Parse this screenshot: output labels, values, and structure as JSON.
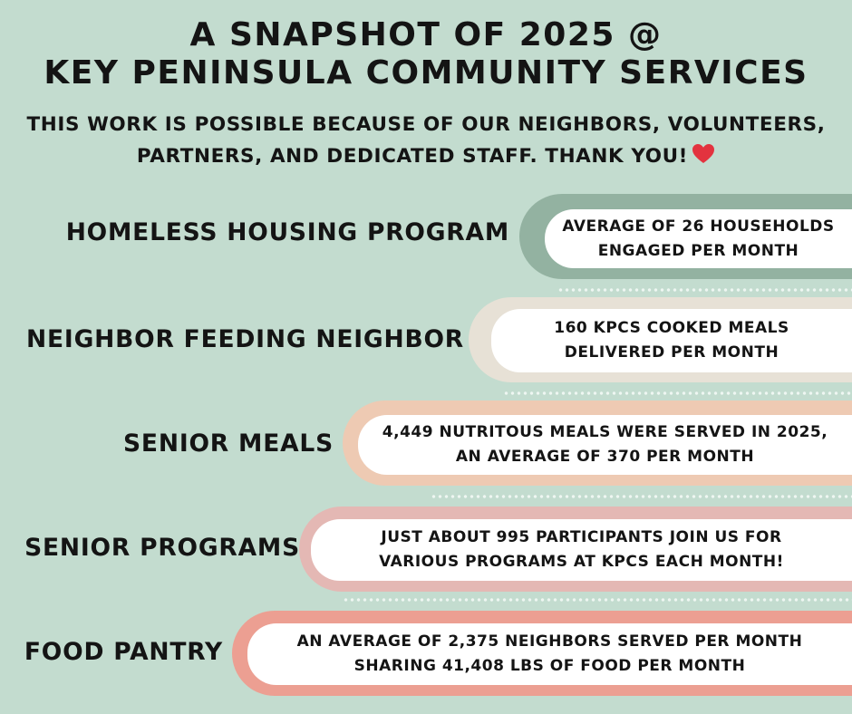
{
  "header": {
    "title_line1": "A SNAPSHOT OF 2025 @",
    "title_line2": "KEY PENINSULA COMMUNITY SERVICES",
    "subtitle_line1": "THIS WORK IS POSSIBLE BECAUSE OF OUR NEIGHBORS, VOLUNTEERS,",
    "subtitle_line2": "PARTNERS, AND DEDICATED STAFF. THANK YOU!",
    "heart_icon": "red-heart-icon",
    "heart_color": "#e3333f"
  },
  "colors": {
    "background": "#c3dccf",
    "dots": "#eef6f1"
  },
  "programs": [
    {
      "name": "HOMELESS HOUSING PROGRAM",
      "stat_line1": "AVERAGE OF 26 HOUSEHOLDS",
      "stat_line2": "ENGAGED PER MONTH",
      "band_color": "#93b2a1"
    },
    {
      "name": "NEIGHBOR FEEDING NEIGHBOR",
      "stat_line1": "160 KPCS COOKED MEALS",
      "stat_line2": "DELIVERED PER MONTH",
      "band_color": "#e7e1d6"
    },
    {
      "name": "SENIOR MEALS",
      "stat_line1": "4,449 NUTRITOUS MEALS WERE SERVED IN 2025,",
      "stat_line2": "AN AVERAGE OF 370 PER MONTH",
      "band_color": "#eecab3"
    },
    {
      "name": "SENIOR PROGRAMS",
      "stat_line1": "JUST ABOUT 995 PARTICIPANTS JOIN US FOR",
      "stat_line2": "VARIOUS PROGRAMS AT KPCS EACH MONTH!",
      "band_color": "#e4b8b4"
    },
    {
      "name": "FOOD PANTRY",
      "stat_line1": "AN AVERAGE OF 2,375 NEIGHBORS SERVED PER MONTH",
      "stat_line2": "SHARING 41,408 LBS OF FOOD PER MONTH",
      "band_color": "#ec9f92"
    }
  ]
}
